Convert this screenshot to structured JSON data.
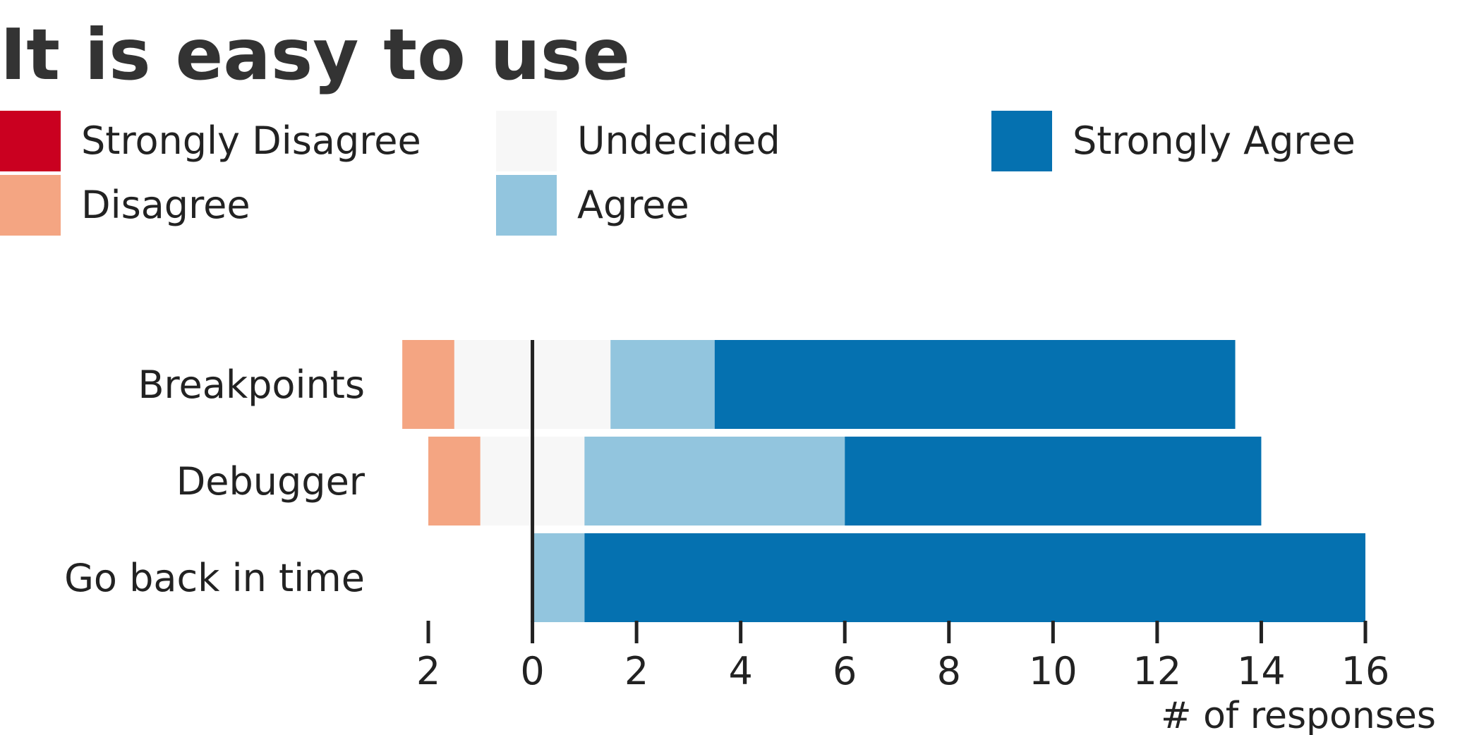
{
  "chart_data": {
    "type": "bar",
    "orientation": "horizontal",
    "stacked": "diverging",
    "title": "It is easy to use",
    "xlabel": "# of responses",
    "ylabel": "",
    "xlim": [
      -2,
      16
    ],
    "xticks": [
      -2,
      0,
      2,
      4,
      6,
      8,
      10,
      12,
      14,
      16
    ],
    "xtick_labels": [
      "2",
      "0",
      "2",
      "4",
      "6",
      "8",
      "10",
      "12",
      "14",
      "16"
    ],
    "categories": [
      "Breakpoints",
      "Debugger",
      "Go back in time"
    ],
    "series": [
      {
        "name": "Strongly Disagree",
        "color": "#ca0020",
        "values": [
          0,
          0,
          0
        ]
      },
      {
        "name": "Disagree",
        "color": "#f4a582",
        "values": [
          1,
          1,
          0
        ]
      },
      {
        "name": "Undecided",
        "color": "#f7f7f7",
        "values": [
          3,
          2,
          0
        ]
      },
      {
        "name": "Agree",
        "color": "#92c5de",
        "values": [
          2,
          5,
          1
        ]
      },
      {
        "name": "Strongly Agree",
        "color": "#0571b0",
        "values": [
          10,
          8,
          15
        ]
      }
    ],
    "legend_position": "top",
    "grid": false,
    "zero_line_color": "#222222"
  }
}
